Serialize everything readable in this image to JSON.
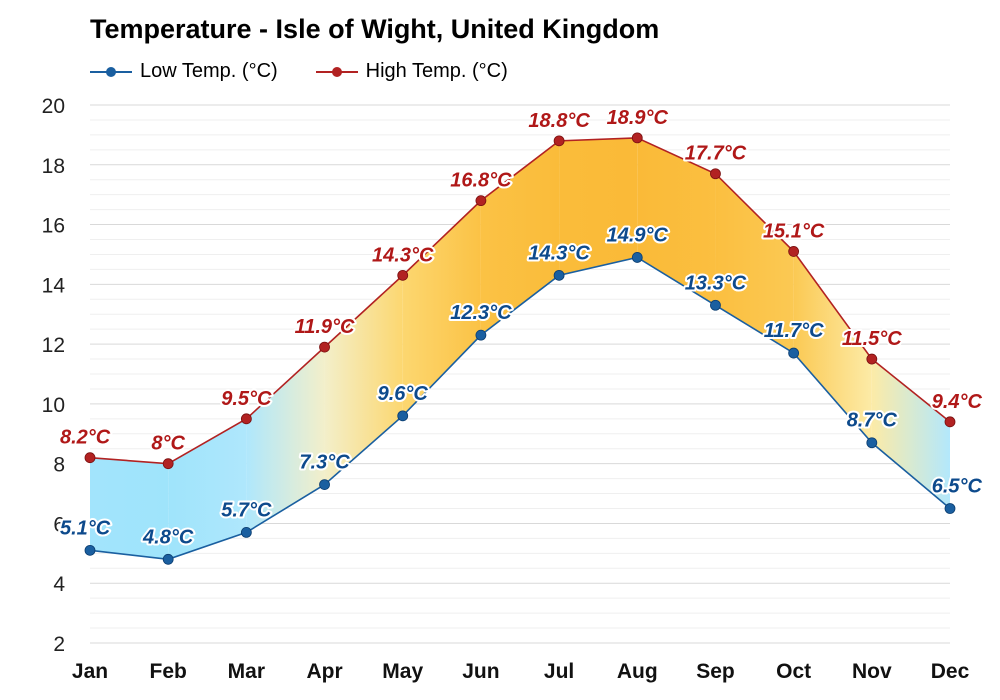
{
  "title": "Temperature - Isle of Wight, United Kingdom",
  "legend": [
    {
      "label": "Low Temp. (°C)",
      "color": "#1a5fa0"
    },
    {
      "label": "High Temp. (°C)",
      "color": "#b22222"
    }
  ],
  "colors": {
    "low_line": "#1a5fa0",
    "high_line": "#b22222",
    "low_label": "#0d4a8c",
    "high_label": "#b01818",
    "cold_fill": "#8ee0fb",
    "warm_fill": "#fbc247",
    "grid": "#e6e6e6"
  },
  "chart_data": {
    "type": "line",
    "title": "Temperature - Isle of Wight, United Kingdom",
    "categories": [
      "Jan",
      "Feb",
      "Mar",
      "Apr",
      "May",
      "Jun",
      "Jul",
      "Aug",
      "Sep",
      "Oct",
      "Nov",
      "Dec"
    ],
    "series": [
      {
        "name": "Low Temp. (°C)",
        "values": [
          5.1,
          4.8,
          5.7,
          7.3,
          9.6,
          12.3,
          14.3,
          14.9,
          13.3,
          11.7,
          8.7,
          6.5
        ],
        "labels": [
          "5.1°C",
          "4.8°C",
          "5.7°C",
          "7.3°C",
          "9.6°C",
          "12.3°C",
          "14.3°C",
          "14.9°C",
          "13.3°C",
          "11.7°C",
          "8.7°C",
          "6.5°C"
        ]
      },
      {
        "name": "High Temp. (°C)",
        "values": [
          8.2,
          8.0,
          9.5,
          11.9,
          14.3,
          16.8,
          18.8,
          18.9,
          17.7,
          15.1,
          11.5,
          9.4
        ],
        "labels": [
          "8.2°C",
          "8°C",
          "9.5°C",
          "11.9°C",
          "14.3°C",
          "16.8°C",
          "18.8°C",
          "18.9°C",
          "17.7°C",
          "15.1°C",
          "11.5°C",
          "9.4°C"
        ]
      }
    ],
    "yticks": [
      2,
      4,
      6,
      8,
      10,
      12,
      14,
      16,
      18,
      20
    ],
    "ylim": [
      2,
      20
    ],
    "grid": true,
    "legend_position": "top-left"
  }
}
